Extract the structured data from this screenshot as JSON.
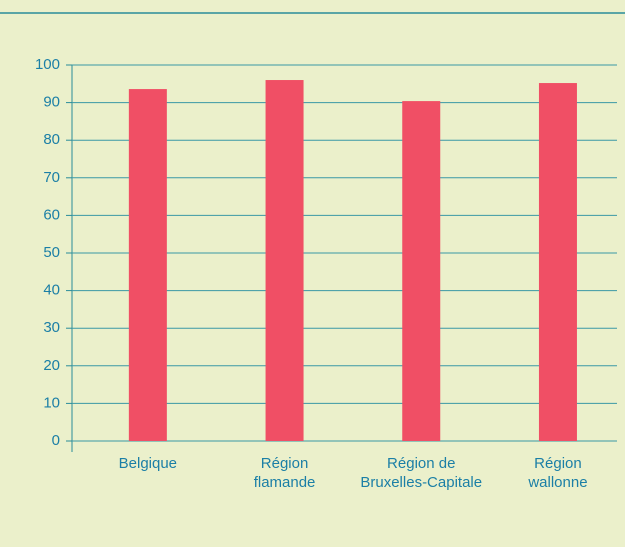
{
  "chart_data": {
    "type": "bar",
    "categories": [
      [
        "Belgique"
      ],
      [
        "Région",
        "flamande"
      ],
      [
        "Région de",
        "Bruxelles-Capitale"
      ],
      [
        "Région",
        "wallonne"
      ]
    ],
    "values": [
      93.6,
      96.0,
      90.4,
      95.2
    ],
    "color": "#f04f65",
    "ylim": [
      0,
      100
    ],
    "yticks": [
      0,
      10,
      20,
      30,
      40,
      50,
      60,
      70,
      80,
      90,
      100
    ],
    "grid": true
  }
}
